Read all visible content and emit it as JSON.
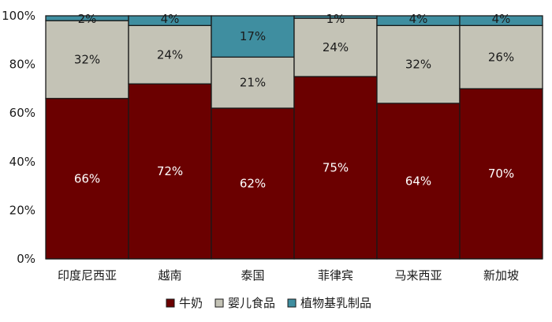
{
  "chart_data": {
    "type": "bar",
    "stacked": true,
    "percent": true,
    "title": "",
    "xlabel": "",
    "ylabel": "",
    "ylim": [
      0,
      100
    ],
    "y_ticks": [
      "0%",
      "20%",
      "40%",
      "60%",
      "80%",
      "100%"
    ],
    "grid": false,
    "legend_position": "bottom",
    "categories": [
      "印度尼西亚",
      "越南",
      "泰国",
      "菲律宾",
      "马来西亚",
      "新加坡"
    ],
    "series": [
      {
        "name": "牛奶",
        "color": "#6b0000",
        "label_color": "#ffffff",
        "values": [
          66,
          72,
          62,
          75,
          64,
          70
        ],
        "labels": [
          "66%",
          "72%",
          "62%",
          "75%",
          "64%",
          "70%"
        ]
      },
      {
        "name": "婴儿食品",
        "color": "#c4c3b6",
        "label_color": "#1a1a1a",
        "values": [
          32,
          24,
          21,
          24,
          32,
          26
        ],
        "labels": [
          "32%",
          "24%",
          "21%",
          "24%",
          "32%",
          "26%"
        ]
      },
      {
        "name": "植物基乳制品",
        "color": "#3f8ea0",
        "label_color": "#1a1a1a",
        "values": [
          2,
          4,
          17,
          1,
          4,
          4
        ],
        "labels": [
          "2%",
          "4%",
          "17%",
          "1%",
          "4%",
          "4%"
        ]
      }
    ]
  }
}
